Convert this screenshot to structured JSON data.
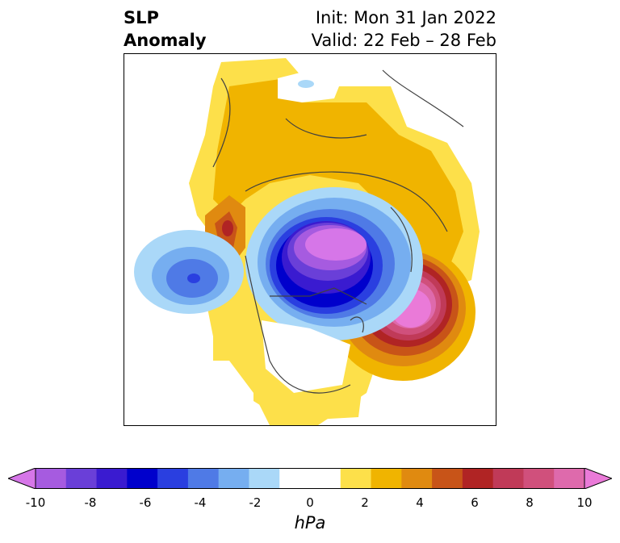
{
  "title": {
    "variable_line1": "SLP",
    "variable_line2": "Anomaly",
    "init": "Init: Mon 31 Jan 2022",
    "valid": "Valid: 22 Feb – 28 Feb"
  },
  "colorbar": {
    "unit": "hPa",
    "ticks": [
      "-10",
      "-8",
      "-6",
      "-4",
      "-2",
      "0",
      "2",
      "4",
      "6",
      "8",
      "10"
    ],
    "colors": [
      "#d676e8",
      "#a65be0",
      "#6a3fd8",
      "#3a1bd0",
      "#0000cc",
      "#2a3fe0",
      "#4f7ae6",
      "#76aef0",
      "#aad8f8",
      "#ffffff",
      "#ffffff",
      "#fde04a",
      "#f0b400",
      "#e08a10",
      "#c85418",
      "#b02424",
      "#c03a58",
      "#d0507c",
      "#de6aac",
      "#ea7ad8"
    ]
  }
}
